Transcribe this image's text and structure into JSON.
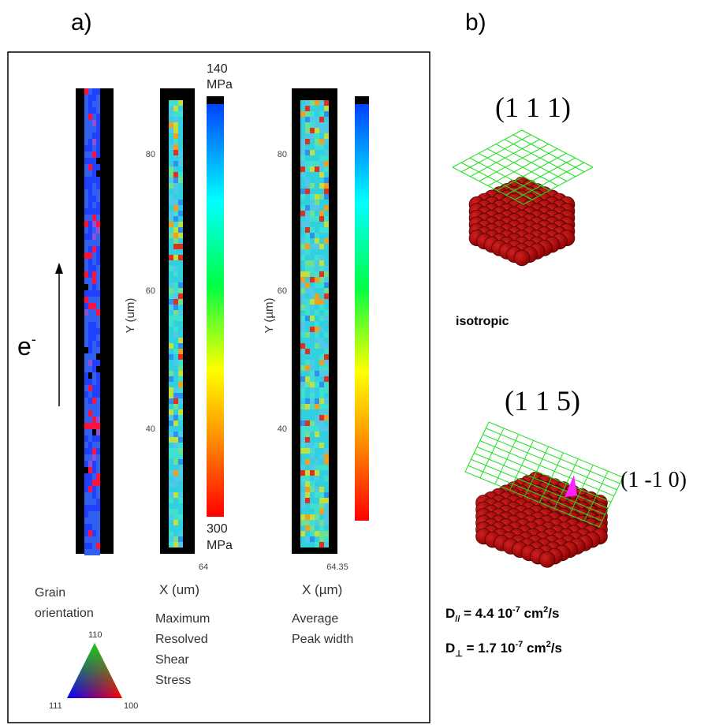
{
  "panel_a": {
    "label": "a)",
    "electron": {
      "base": "e",
      "sup": "-"
    },
    "stress_map": {
      "scale_top": [
        "140",
        "MPa"
      ],
      "scale_bottom": [
        "300",
        "MPa"
      ],
      "y_ticks": [
        "80",
        "60",
        "40"
      ],
      "y_label": "Y (um)",
      "x_tick": "64",
      "x_label": "X (um)",
      "caption": [
        "Maximum",
        "Resolved",
        "Shear",
        "Stress"
      ]
    },
    "width_map": {
      "y_ticks": [
        "80",
        "60",
        "40"
      ],
      "y_label": "Y (µm)",
      "x_tick": "64.35",
      "x_label": "X (µm)",
      "caption": [
        "Average",
        "Peak width"
      ]
    },
    "grain_map": {
      "caption": [
        "Grain",
        "orientation"
      ],
      "triangle": {
        "top": "110",
        "left": "111",
        "right": "100"
      }
    }
  },
  "panel_b": {
    "label": "b)",
    "crystal_1": {
      "plane": "(1 1 1)",
      "caption": "isotropic"
    },
    "crystal_2": {
      "plane": "(1 1 5)",
      "direction": "(1 -1 0)"
    },
    "d_parallel": {
      "base": "D",
      "sub": "//",
      "text": " = 4.4 10",
      "exp": "-7",
      "unit": " cm",
      "unit_exp": "2",
      "tail": "/s"
    },
    "d_perp": {
      "base": "D",
      "sub": "⊥",
      "text": " = 1.7 10",
      "exp": "-7",
      "unit": " cm",
      "unit_exp": "2",
      "tail": "/s"
    }
  }
}
